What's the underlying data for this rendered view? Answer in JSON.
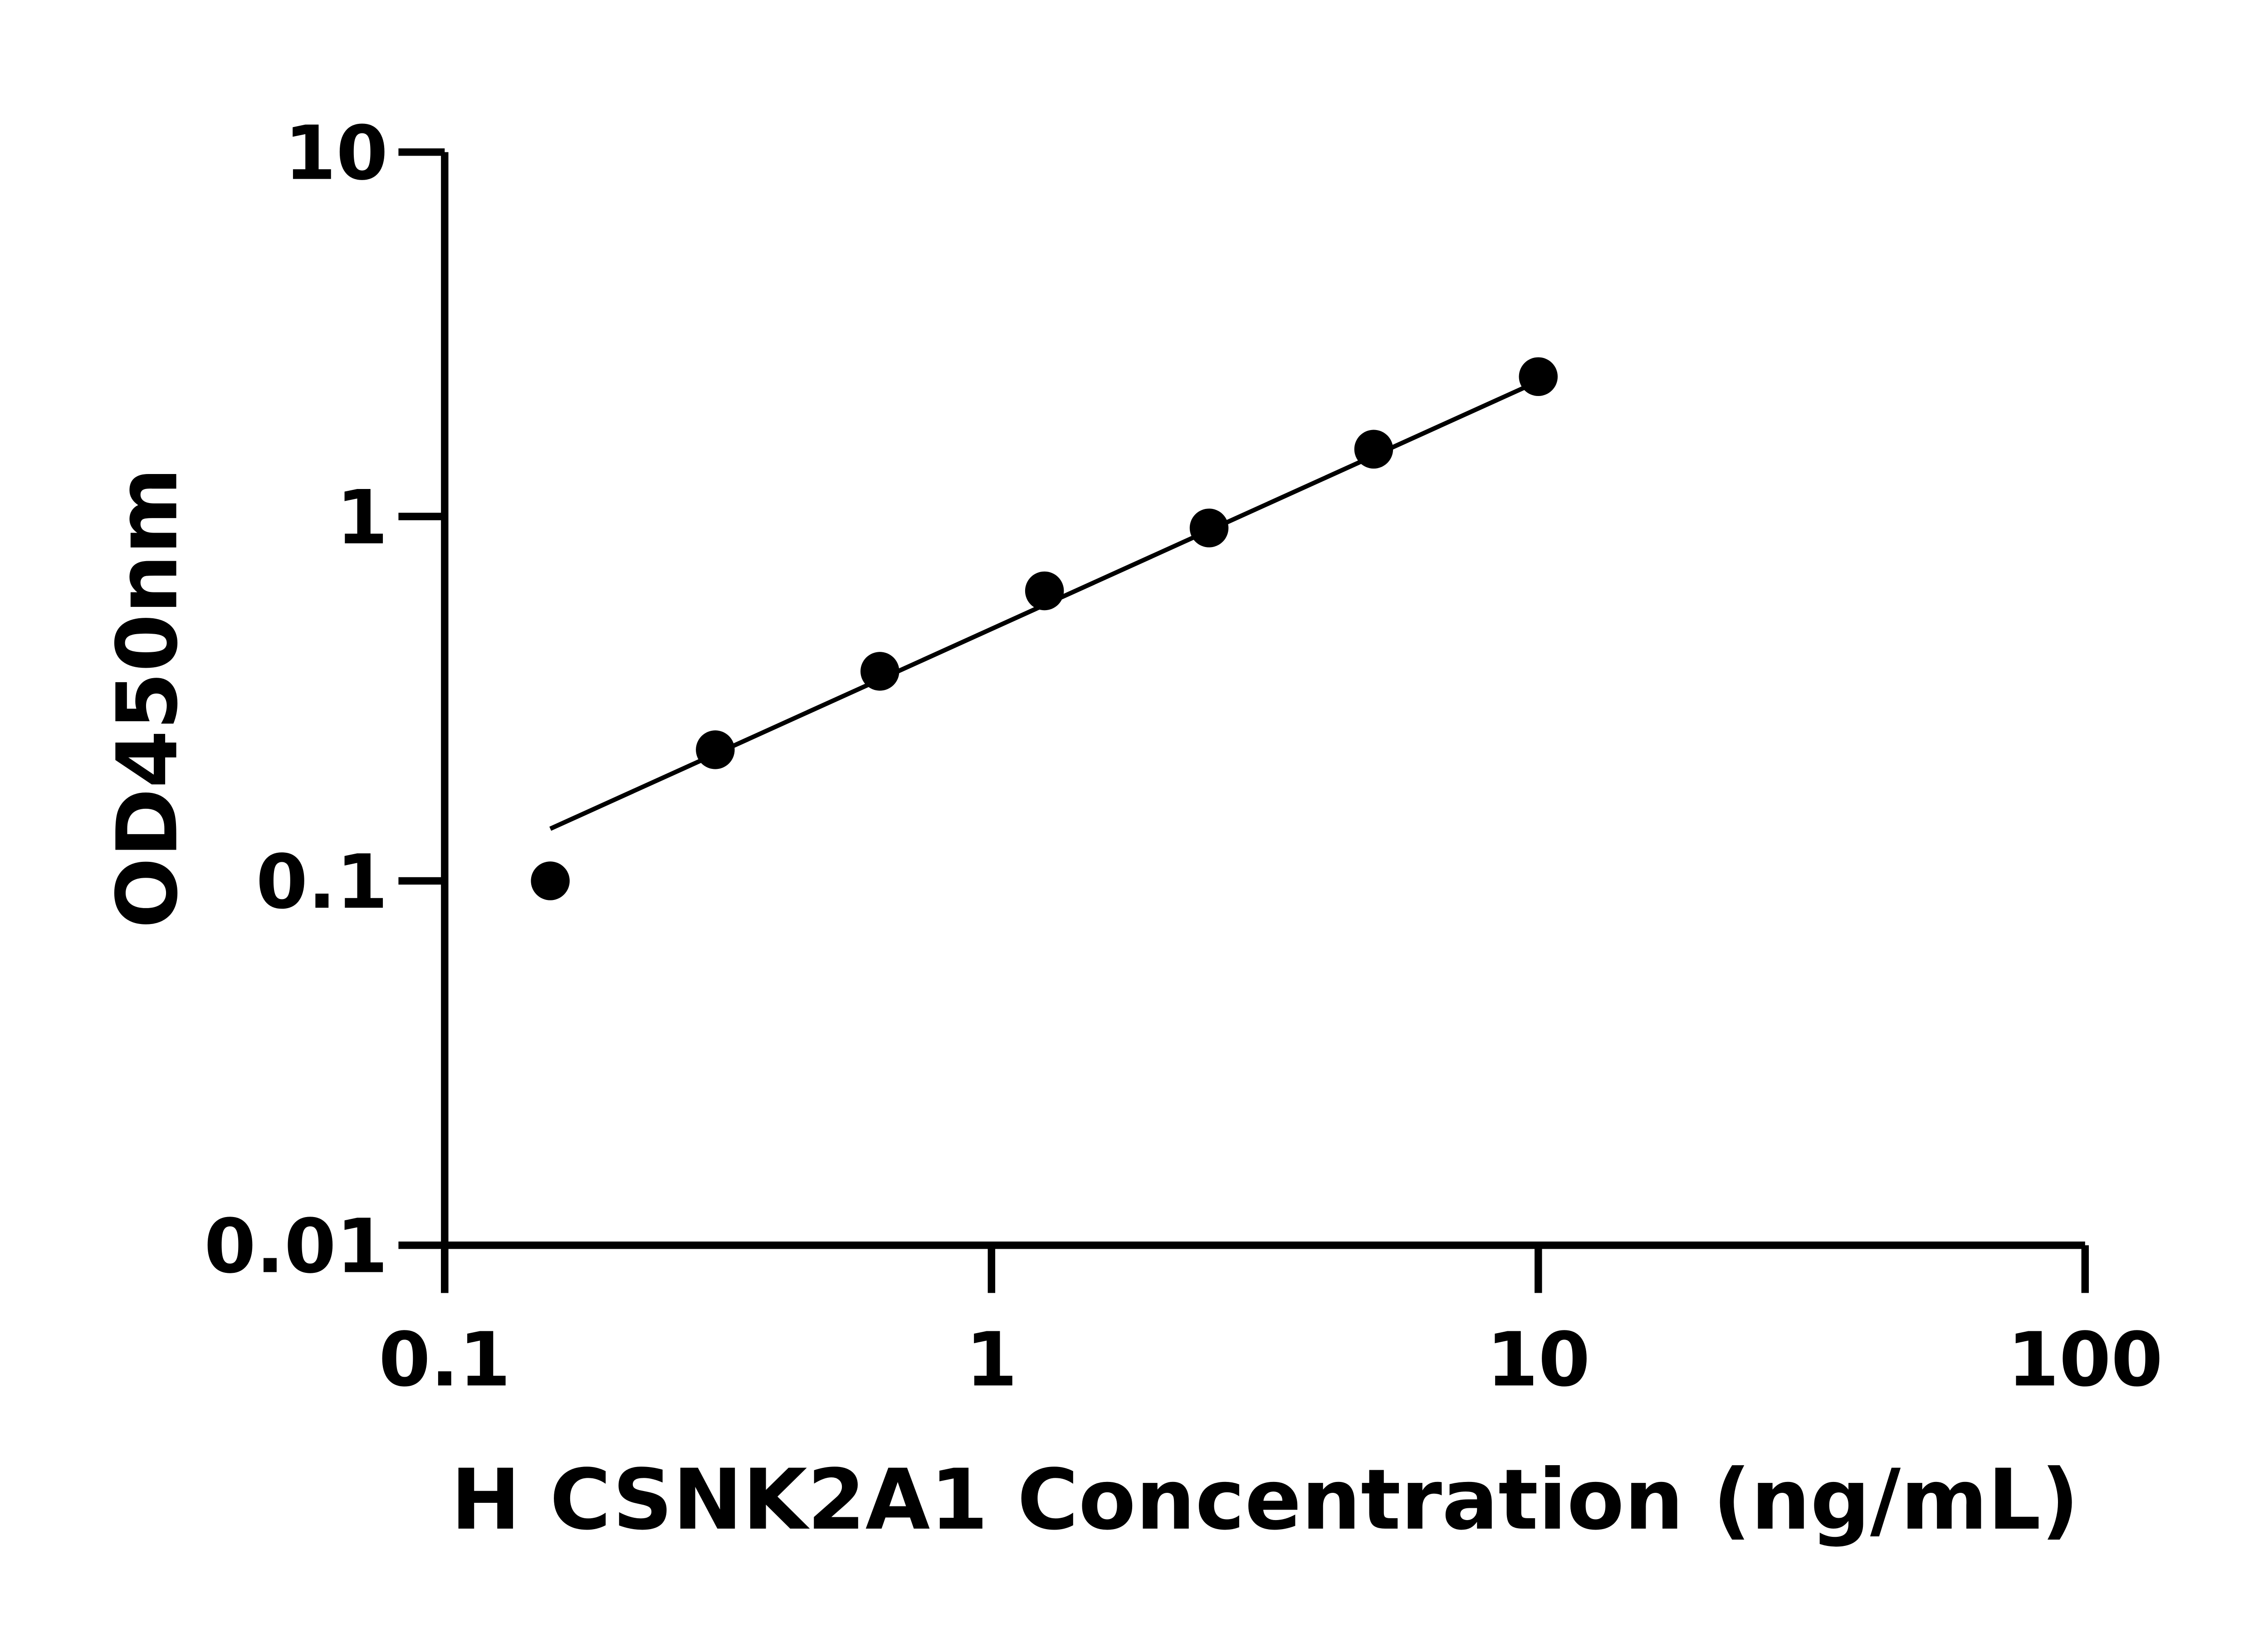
{
  "chart_data": {
    "type": "scatter",
    "title": "",
    "xlabel": "H CSNK2A1 Concentration (ng/mL)",
    "ylabel": "OD450nm",
    "x_scale": "log",
    "y_scale": "log",
    "xlim": [
      0.1,
      100
    ],
    "ylim": [
      0.01,
      10
    ],
    "x_ticks": [
      0.1,
      1,
      10,
      100
    ],
    "x_tick_labels": [
      "0.1",
      "1",
      "10",
      "100"
    ],
    "y_ticks": [
      0.01,
      0.1,
      1,
      10
    ],
    "y_tick_labels": [
      "0.01",
      "0.1",
      "1",
      "10"
    ],
    "grid": false,
    "series": [
      {
        "x": [
          0.156,
          0.3125,
          0.625,
          1.25,
          2.5,
          5,
          10
        ],
        "y": [
          0.1,
          0.229,
          0.376,
          0.625,
          0.93,
          1.53,
          2.42
        ]
      }
    ],
    "fit_line": {
      "x": [
        0.156,
        10
      ],
      "y": [
        0.139,
        2.35
      ]
    },
    "colors": {
      "points": "#000000",
      "line": "#000000",
      "axes": "#000000"
    }
  }
}
